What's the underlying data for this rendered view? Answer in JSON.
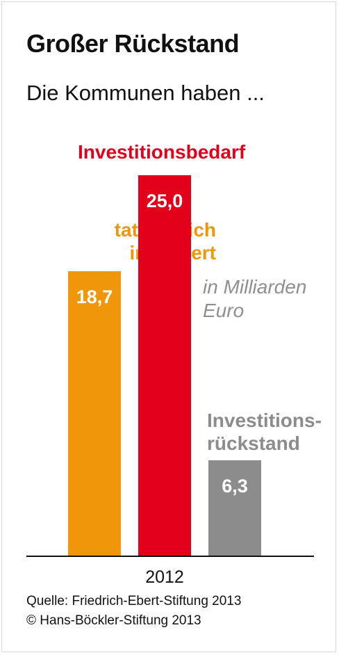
{
  "title": "Großer Rückstand",
  "subtitle": "Die Kommunen haben ...",
  "unit_note": "in Milliarden Euro",
  "source_line1": "Quelle: Friedrich-Ebert-Stiftung 2013",
  "source_line2": "© Hans-Böckler-Stiftung 2013",
  "colors": {
    "investiert": "#f0960a",
    "bedarf": "#e2001a",
    "rueckstand": "#8c8c8c",
    "axis": "#111111"
  },
  "chart_data": {
    "type": "bar",
    "categories": [
      "2012"
    ],
    "series": [
      {
        "name": "tatsächlich investiert",
        "values": [
          18.7
        ],
        "value_label": "18,7",
        "label_lines": [
          "tatsächlich",
          "investiert"
        ]
      },
      {
        "name": "Investitionsbedarf",
        "values": [
          25.0
        ],
        "value_label": "25,0",
        "label_lines": [
          "Investitionsbedarf"
        ]
      },
      {
        "name": "Investitionsrückstand",
        "values": [
          6.3
        ],
        "value_label": "6,3",
        "label_lines": [
          "Investitions-",
          "rückstand"
        ]
      }
    ],
    "ylim": [
      0,
      25
    ],
    "xlabel": "",
    "ylabel": "",
    "grid": false,
    "legend": "labels above bars"
  }
}
